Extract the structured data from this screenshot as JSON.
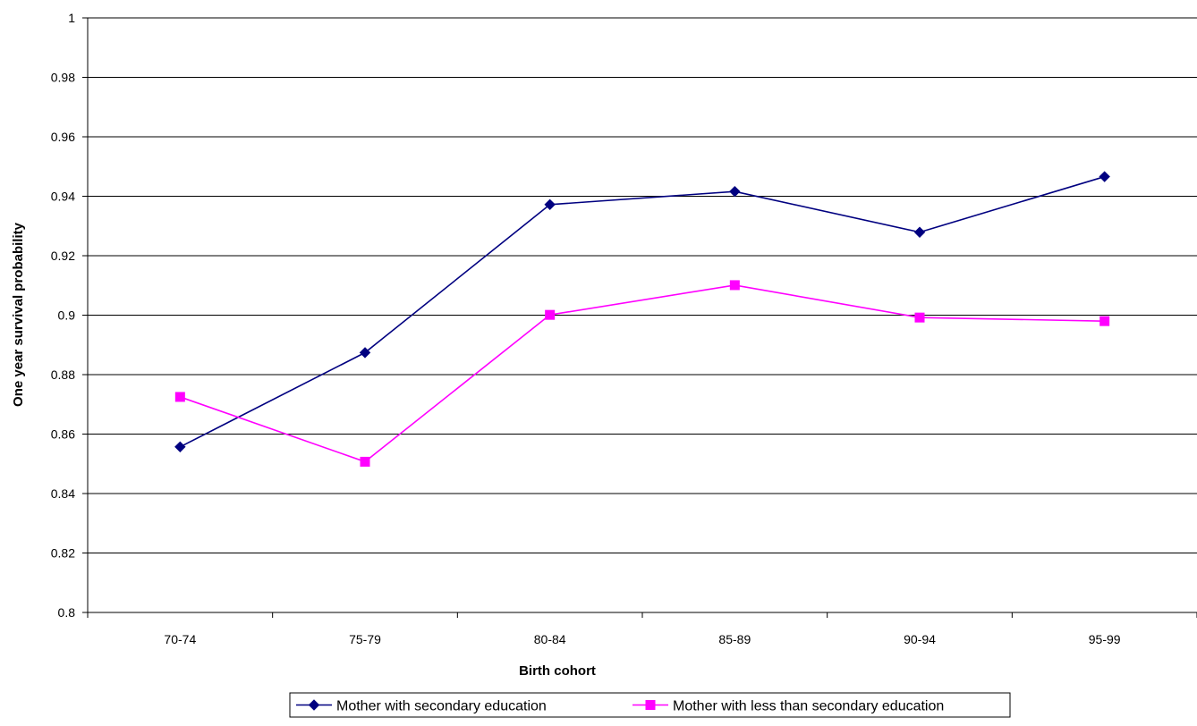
{
  "chart_data": {
    "type": "line",
    "title": "",
    "xlabel": "Birth cohort",
    "ylabel": "One year survival probability",
    "categories": [
      "70-74",
      "75-79",
      "80-84",
      "85-89",
      "90-94",
      "95-99"
    ],
    "ylim": [
      0.8,
      1
    ],
    "yticks": [
      "0.8",
      "0.82",
      "0.84",
      "0.86",
      "0.88",
      "0.9",
      "0.92",
      "0.94",
      "0.96",
      "0.98",
      "1"
    ],
    "grid": true,
    "legend_position": "bottom",
    "series": [
      {
        "name": "Mother with secondary education",
        "values": [
          0.8557,
          0.8874,
          0.9372,
          0.9416,
          0.9279,
          0.9466
        ],
        "color": "#000080",
        "marker": "diamond"
      },
      {
        "name": "Mother with less than secondary education",
        "values": [
          0.8725,
          0.8507,
          0.9001,
          0.9101,
          0.8992,
          0.898
        ],
        "color": "#ff00ff",
        "marker": "square"
      }
    ]
  }
}
